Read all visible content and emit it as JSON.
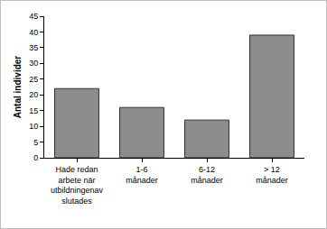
{
  "chart_data": {
    "type": "bar",
    "categories": [
      "Hade redan arbete när utbildningenav slutades",
      "1-6 månader",
      "6-12 månader",
      "> 12 månader"
    ],
    "values": [
      22,
      16,
      12,
      39
    ],
    "color": "#8c8c8c",
    "y_label": "Antal individer",
    "ylim": [
      0,
      45
    ],
    "yticks": [
      0,
      5,
      10,
      15,
      20,
      25,
      30,
      35,
      40,
      45
    ],
    "grid": false
  }
}
